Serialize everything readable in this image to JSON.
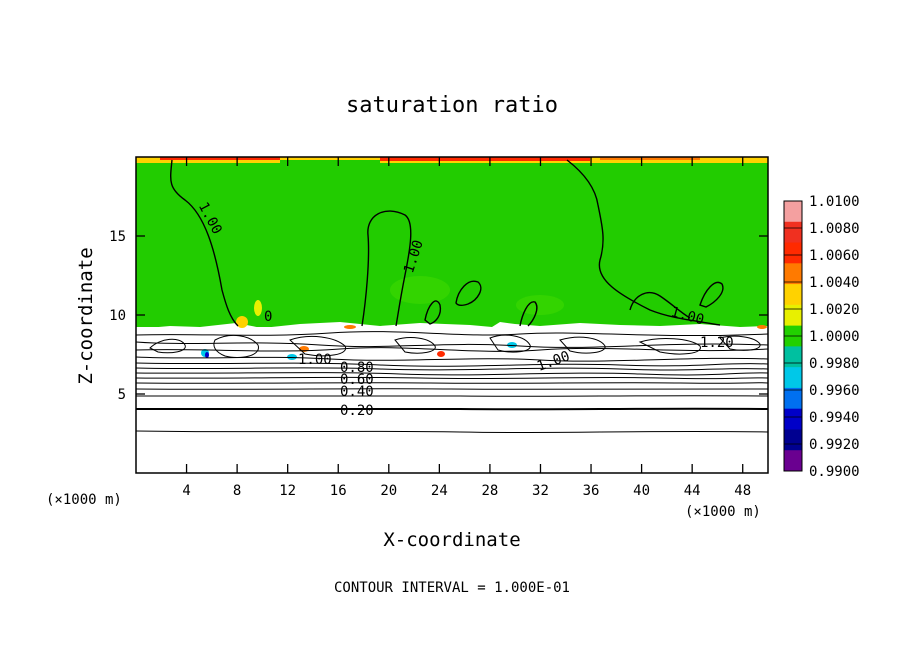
{
  "chart_data": {
    "type": "heatmap",
    "title": "saturation ratio",
    "xlabel": "X-coordinate",
    "ylabel": "Z-coordinate",
    "x_unit": "(×1000 m)",
    "x_unit_right": "(×1000 m)",
    "xlim": [
      0,
      50
    ],
    "ylim": [
      0,
      20
    ],
    "xticks": [
      4,
      8,
      12,
      16,
      20,
      24,
      28,
      32,
      36,
      40,
      44,
      48
    ],
    "yticks": [
      5,
      10,
      15
    ],
    "colorbar": {
      "levels": [
        "1.0100",
        "1.0080",
        "1.0060",
        "1.0040",
        "1.0020",
        "1.0000",
        "0.9980",
        "0.9960",
        "0.9940",
        "0.9920",
        "0.9900"
      ],
      "colors": [
        "#f4a0a0",
        "#f03020",
        "#ff2a00",
        "#ff7a00",
        "#ffd200",
        "#e8f000",
        "#22d000",
        "#00c0a0",
        "#00c8e8",
        "#0070f0",
        "#0000c8",
        "#000090",
        "#6a0090"
      ],
      "min": 0.99,
      "max": 1.01
    },
    "contour_labels": [
      "1.00",
      "1.00",
      "1.00",
      "0",
      "1.20",
      "1.00",
      "1.00",
      "0.80",
      "0.60",
      "0.40",
      "0.20"
    ],
    "footer": "CONTOUR INTERVAL = 1.000E-01"
  }
}
